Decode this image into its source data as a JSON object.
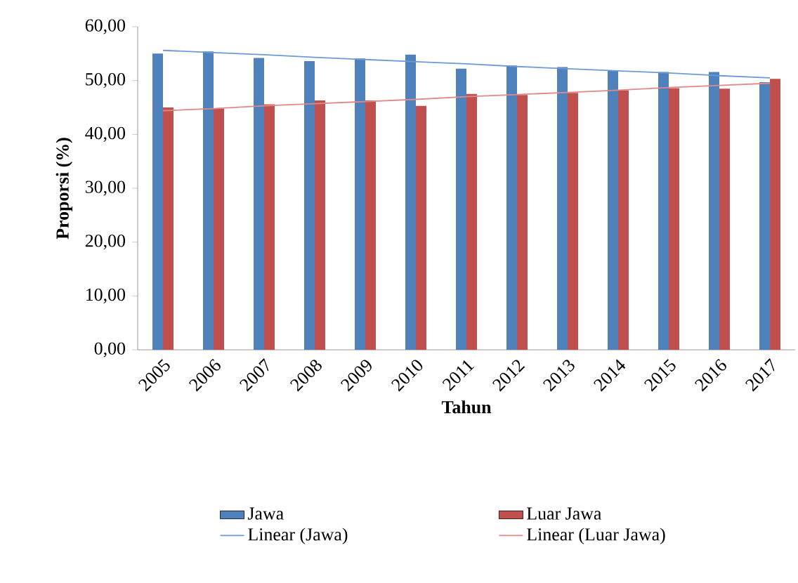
{
  "chart_data": {
    "type": "bar",
    "xlabel": "Tahun",
    "ylabel": "Proporsi (%)",
    "categories": [
      "2005",
      "2006",
      "2007",
      "2008",
      "2009",
      "2010",
      "2011",
      "2012",
      "2013",
      "2014",
      "2015",
      "2016",
      "2017"
    ],
    "series": [
      {
        "name": "Jawa",
        "color": "#4f81bd",
        "values": [
          55.0,
          55.4,
          54.2,
          53.6,
          54.1,
          54.8,
          52.2,
          52.8,
          52.5,
          51.8,
          51.6,
          51.6,
          49.7
        ]
      },
      {
        "name": "Luar Jawa",
        "color": "#c0504d",
        "values": [
          45.0,
          44.8,
          45.6,
          46.3,
          46.3,
          45.3,
          47.5,
          47.3,
          47.7,
          48.2,
          48.6,
          48.5,
          50.3
        ]
      },
      {
        "name": "Linear (Jawa)",
        "type": "line",
        "color": "#6f9ad6",
        "values": [
          55.6,
          55.2,
          54.8,
          54.3,
          53.9,
          53.5,
          53.1,
          52.6,
          52.2,
          51.8,
          51.4,
          50.9,
          50.5
        ]
      },
      {
        "name": "Linear (Luar Jawa)",
        "type": "line",
        "color": "#e08a88",
        "values": [
          44.4,
          44.8,
          45.3,
          45.7,
          46.1,
          46.5,
          47.0,
          47.4,
          47.8,
          48.2,
          48.7,
          49.1,
          49.5
        ]
      }
    ],
    "ylim": [
      0,
      60
    ],
    "yticks": [
      {
        "value": 0,
        "label": "0,00"
      },
      {
        "value": 10,
        "label": "10,00"
      },
      {
        "value": 20,
        "label": "20,00"
      },
      {
        "value": 30,
        "label": "30,00"
      },
      {
        "value": 40,
        "label": "40,00"
      },
      {
        "value": 50,
        "label": "50,00"
      },
      {
        "value": 60,
        "label": "60,00"
      }
    ],
    "legend": "bottom"
  }
}
